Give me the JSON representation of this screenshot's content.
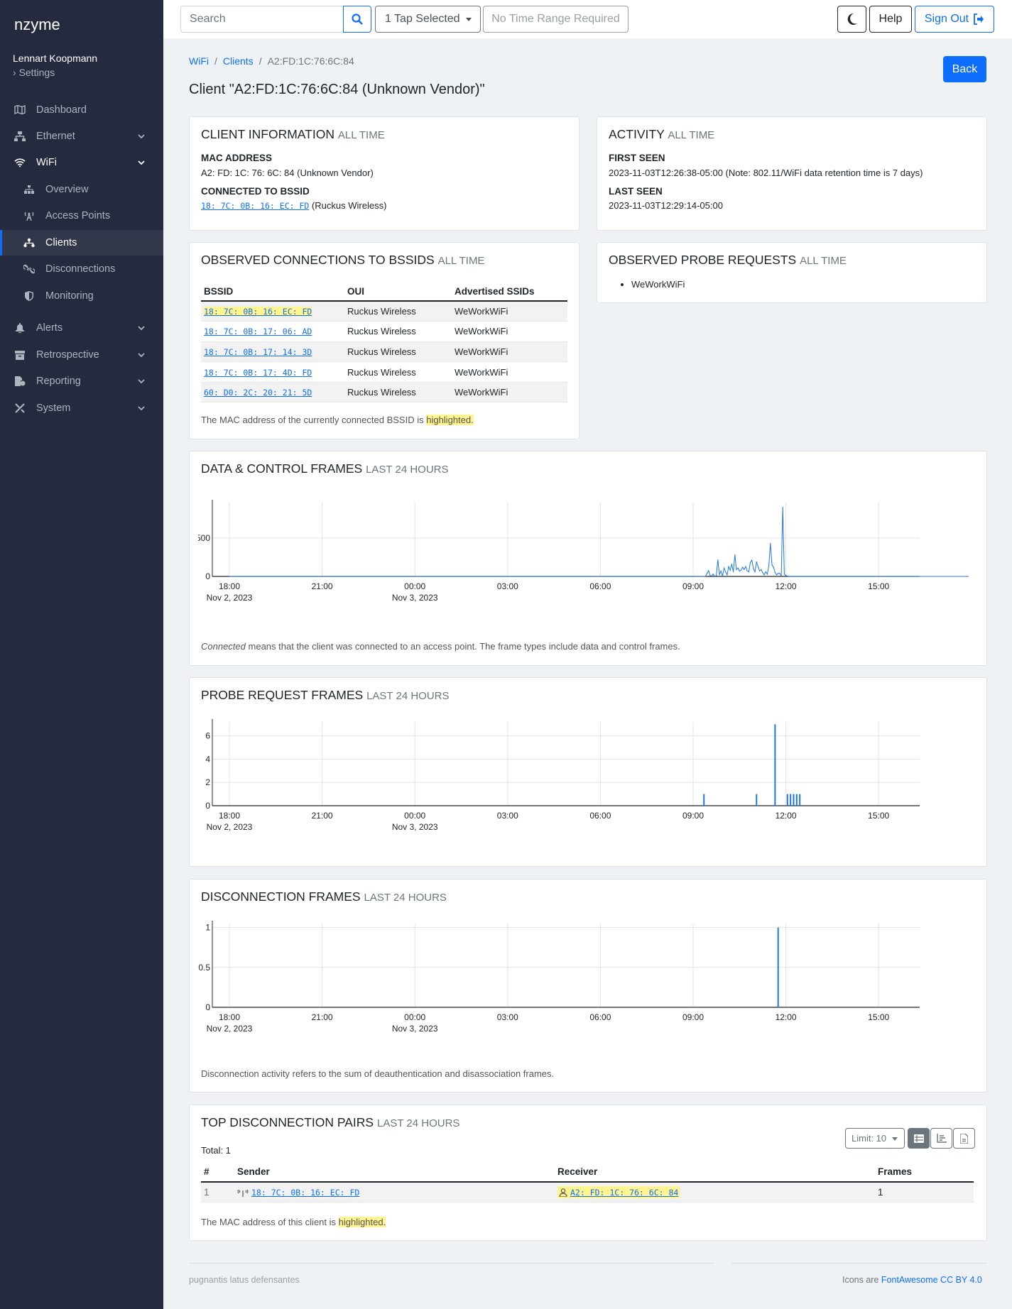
{
  "sidebar": {
    "brand": "nzyme",
    "user": "Lennart Koopmann",
    "settings": "Settings",
    "items": [
      {
        "label": "Dashboard",
        "icon": "map-icon"
      },
      {
        "label": "Ethernet",
        "icon": "network-icon"
      },
      {
        "label": "WiFi",
        "icon": "wifi-icon"
      },
      {
        "label": "Overview",
        "icon": "sitemap-icon"
      },
      {
        "label": "Access Points",
        "icon": "tower-icon"
      },
      {
        "label": "Clients",
        "icon": "clients-icon"
      },
      {
        "label": "Disconnections",
        "icon": "unlink-icon"
      },
      {
        "label": "Monitoring",
        "icon": "shield-icon"
      },
      {
        "label": "Alerts",
        "icon": "bell-icon"
      },
      {
        "label": "Retrospective",
        "icon": "archive-icon"
      },
      {
        "label": "Reporting",
        "icon": "report-icon"
      },
      {
        "label": "System",
        "icon": "tools-icon"
      }
    ]
  },
  "topbar": {
    "search_placeholder": "Search",
    "tap_selector": "1 Tap Selected",
    "time_range": "No Time Range Required",
    "help": "Help",
    "sign_out": "Sign Out"
  },
  "breadcrumb": {
    "wifi": "WiFi",
    "sep": "/",
    "clients": "Clients",
    "current": "A2:FD:1C:76:6C:84"
  },
  "page_title": "Client \"A2:FD:1C:76:6C:84 (Unknown Vendor)\"",
  "back": "Back",
  "client_info": {
    "title": "CLIENT INFORMATION",
    "sub": "ALL TIME",
    "mac_label": "MAC ADDRESS",
    "mac_value": "A2: FD: 1C: 76: 6C: 84 (Unknown Vendor)",
    "bssid_label": "CONNECTED TO BSSID",
    "bssid": "18: 7C: 0B: 16: EC: FD",
    "bssid_vendor": "(Ruckus Wireless)"
  },
  "activity": {
    "title": "ACTIVITY",
    "sub": "ALL TIME",
    "first_label": "FIRST SEEN",
    "first_value": "2023-11-03T12:26:38-05:00 (Note: 802.11/WiFi data retention time is 7 days)",
    "last_label": "LAST SEEN",
    "last_value": "2023-11-03T12:29:14-05:00"
  },
  "connections": {
    "title": "OBSERVED CONNECTIONS TO BSSIDS",
    "sub": "ALL TIME",
    "headers": [
      "BSSID",
      "OUI",
      "Advertised SSIDs"
    ],
    "rows": [
      {
        "bssid": "18: 7C: 0B: 16: EC: FD",
        "oui": "Ruckus Wireless",
        "ssid": "WeWorkWiFi",
        "highlighted": true
      },
      {
        "bssid": "18: 7C: 0B: 17: 06: AD",
        "oui": "Ruckus Wireless",
        "ssid": "WeWorkWiFi",
        "highlighted": false
      },
      {
        "bssid": "18: 7C: 0B: 17: 14: 3D",
        "oui": "Ruckus Wireless",
        "ssid": "WeWorkWiFi",
        "highlighted": false
      },
      {
        "bssid": "18: 7C: 0B: 17: 4D: FD",
        "oui": "Ruckus Wireless",
        "ssid": "WeWorkWiFi",
        "highlighted": false
      },
      {
        "bssid": "60: D0: 2C: 20: 21: 5D",
        "oui": "Ruckus Wireless",
        "ssid": "WeWorkWiFi",
        "highlighted": false
      }
    ],
    "note_pre": "The MAC address of the currently connected BSSID is",
    "note_hl": "highlighted."
  },
  "probes": {
    "title": "OBSERVED PROBE REQUESTS",
    "sub": "ALL TIME",
    "items": [
      "WeWorkWiFi"
    ]
  },
  "data_frames": {
    "title": "DATA & CONTROL FRAMES",
    "sub": "LAST 24 HOURS",
    "note_italic": "Connected",
    "note_rest": "means that the client was connected to an access point. The frame types include data and control frames."
  },
  "probe_frames": {
    "title": "PROBE REQUEST FRAMES",
    "sub": "LAST 24 HOURS"
  },
  "disc_frames": {
    "title": "DISCONNECTION FRAMES",
    "sub": "LAST 24 HOURS",
    "note": "Disconnection activity refers to the sum of deauthentication and disassociation frames."
  },
  "pairs": {
    "title": "TOP DISCONNECTION PAIRS",
    "sub": "LAST 24 HOURS",
    "total": "Total: 1",
    "limit": "Limit: 10",
    "headers": [
      "#",
      "Sender",
      "Receiver",
      "Frames"
    ],
    "rows": [
      {
        "n": "1",
        "sender": "18: 7C: 0B: 16: EC: FD",
        "receiver": "A2: FD: 1C: 76: 6C: 84",
        "frames": "1"
      }
    ],
    "note_pre": "The MAC address of this client is",
    "note_hl": "highlighted."
  },
  "footer": {
    "left": "pugnantis latus defensantes",
    "right_pre": "Icons are",
    "right_link": "FontAwesome CC BY 4.0"
  },
  "chart_data": [
    {
      "type": "line",
      "title": "DATA & CONTROL FRAMES",
      "x_ticks": [
        "18:00",
        "21:00",
        "00:00",
        "03:00",
        "06:00",
        "09:00",
        "12:00",
        "15:00"
      ],
      "x_dates": {
        "18:00": "Nov 2, 2023",
        "00:00": "Nov 3, 2023"
      },
      "y_ticks": [
        0,
        500
      ],
      "ylim": [
        0,
        960
      ],
      "x_hours_offset_from_1800": [
        0,
        15.4,
        15.45,
        15.5,
        15.55,
        15.6,
        15.65,
        15.7,
        15.75,
        15.8,
        15.85,
        15.9,
        15.95,
        16.0,
        16.05,
        16.1,
        16.15,
        16.2,
        16.25,
        16.3,
        16.35,
        16.4,
        16.45,
        16.5,
        16.55,
        16.6,
        16.65,
        16.7,
        16.75,
        16.8,
        16.85,
        16.9,
        16.95,
        17.0,
        17.05,
        17.1,
        17.15,
        17.2,
        17.25,
        17.3,
        17.35,
        17.4,
        17.45,
        17.5,
        17.55,
        17.6,
        17.65,
        17.7,
        17.75,
        17.8,
        17.85,
        17.9,
        17.95,
        18.0,
        18.05,
        18.1,
        18.15,
        18.2,
        18.25,
        18.3,
        18.35,
        18.4,
        18.45,
        18.5,
        23.9
      ],
      "values": [
        0,
        0,
        40,
        75,
        10,
        5,
        30,
        0,
        10,
        215,
        20,
        70,
        5,
        110,
        60,
        20,
        130,
        80,
        160,
        60,
        280,
        90,
        110,
        70,
        80,
        120,
        90,
        130,
        70,
        60,
        180,
        210,
        100,
        60,
        190,
        130,
        70,
        90,
        50,
        20,
        60,
        30,
        150,
        430,
        150,
        120,
        50,
        20,
        40,
        40,
        10,
        900,
        30,
        10,
        5,
        0,
        0,
        0,
        0,
        0,
        0,
        0,
        0,
        0,
        0
      ]
    },
    {
      "type": "bar",
      "title": "PROBE REQUEST FRAMES",
      "x_ticks": [
        "18:00",
        "21:00",
        "00:00",
        "03:00",
        "06:00",
        "09:00",
        "12:00",
        "15:00"
      ],
      "x_dates": {
        "18:00": "Nov 2, 2023",
        "00:00": "Nov 3, 2023"
      },
      "y_ticks": [
        0,
        2,
        4,
        6
      ],
      "ylim": [
        0,
        7.2
      ],
      "x_hours_offset_from_1800": [
        15.35,
        17.05,
        17.65,
        18.05,
        18.15,
        18.25,
        18.35,
        18.45
      ],
      "values": [
        1,
        1,
        7,
        1,
        1,
        1,
        1,
        1
      ]
    },
    {
      "type": "bar",
      "title": "DISCONNECTION FRAMES",
      "x_ticks": [
        "18:00",
        "21:00",
        "00:00",
        "03:00",
        "06:00",
        "09:00",
        "12:00",
        "15:00"
      ],
      "x_dates": {
        "18:00": "Nov 2, 2023",
        "00:00": "Nov 3, 2023"
      },
      "y_ticks": [
        0,
        0.5,
        1
      ],
      "ylim": [
        0,
        1.05
      ],
      "x_hours_offset_from_1800": [
        17.75
      ],
      "values": [
        1
      ]
    }
  ]
}
